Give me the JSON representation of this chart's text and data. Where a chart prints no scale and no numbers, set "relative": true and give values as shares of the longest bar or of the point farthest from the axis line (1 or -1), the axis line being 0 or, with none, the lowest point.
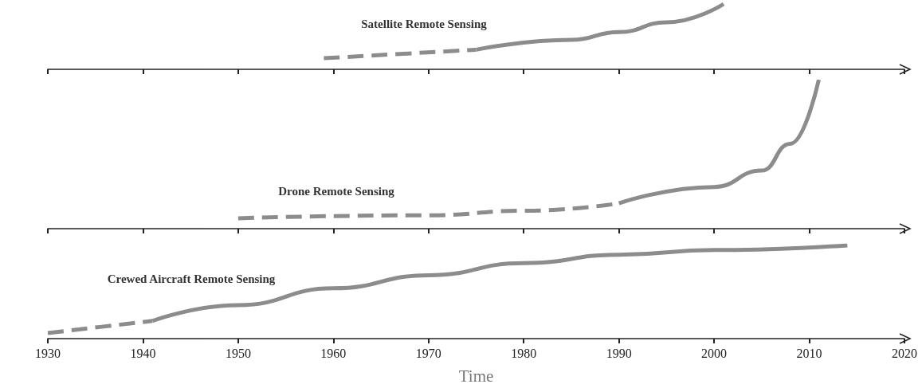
{
  "chart_data": [
    {
      "type": "line",
      "relative": true,
      "xlim": [
        1930,
        2020
      ],
      "xticks": [
        1930,
        1940,
        1950,
        1960,
        1970,
        1980,
        1990,
        2000,
        2010,
        2020
      ],
      "tick_labels": false,
      "series": [
        {
          "color": "#8c8c8c",
          "line_style": "dashed",
          "x": [
            1959,
            1975
          ],
          "values": [
            0.17,
            0.3
          ]
        },
        {
          "color": "#8c8c8c",
          "line_style": "solid",
          "x": [
            1975,
            1985,
            1990,
            1995,
            2001
          ],
          "values": [
            0.3,
            0.45,
            0.57,
            0.72,
            1
          ]
        }
      ],
      "annotations": [
        "Satellite Remote Sensing"
      ]
    },
    {
      "type": "line",
      "relative": true,
      "xlim": [
        1930,
        2020
      ],
      "xticks": [
        1930,
        1940,
        1950,
        1960,
        1970,
        1980,
        1990,
        2000,
        2010,
        2020
      ],
      "tick_labels": false,
      "series": [
        {
          "color": "#8c8c8c",
          "line_style": "dashed",
          "x": [
            1950,
            1970,
            1980,
            1990
          ],
          "values": [
            0.07,
            0.09,
            0.12,
            0.17
          ]
        },
        {
          "color": "#8c8c8c",
          "line_style": "solid",
          "x": [
            1990,
            2000,
            2005,
            2008,
            2011
          ],
          "values": [
            0.17,
            0.28,
            0.39,
            0.57,
            1
          ]
        }
      ],
      "annotations": [
        "Drone Remote Sensing"
      ]
    },
    {
      "type": "line",
      "relative": true,
      "xlim": [
        1930,
        2020
      ],
      "xticks": [
        1930,
        1940,
        1950,
        1960,
        1970,
        1980,
        1990,
        2000,
        2010,
        2020
      ],
      "xlabel": "Time",
      "series": [
        {
          "color": "#8c8c8c",
          "line_style": "dashed",
          "x": [
            1930,
            1941
          ],
          "values": [
            0.06,
            0.19
          ]
        },
        {
          "color": "#8c8c8c",
          "line_style": "solid",
          "x": [
            1941,
            1950,
            1960,
            1970,
            1980,
            1990,
            2000,
            2014
          ],
          "values": [
            0.19,
            0.36,
            0.54,
            0.68,
            0.81,
            0.9,
            0.95,
            1
          ]
        }
      ],
      "annotations": [
        "Crewed Aircraft Remote Sensing"
      ]
    }
  ]
}
